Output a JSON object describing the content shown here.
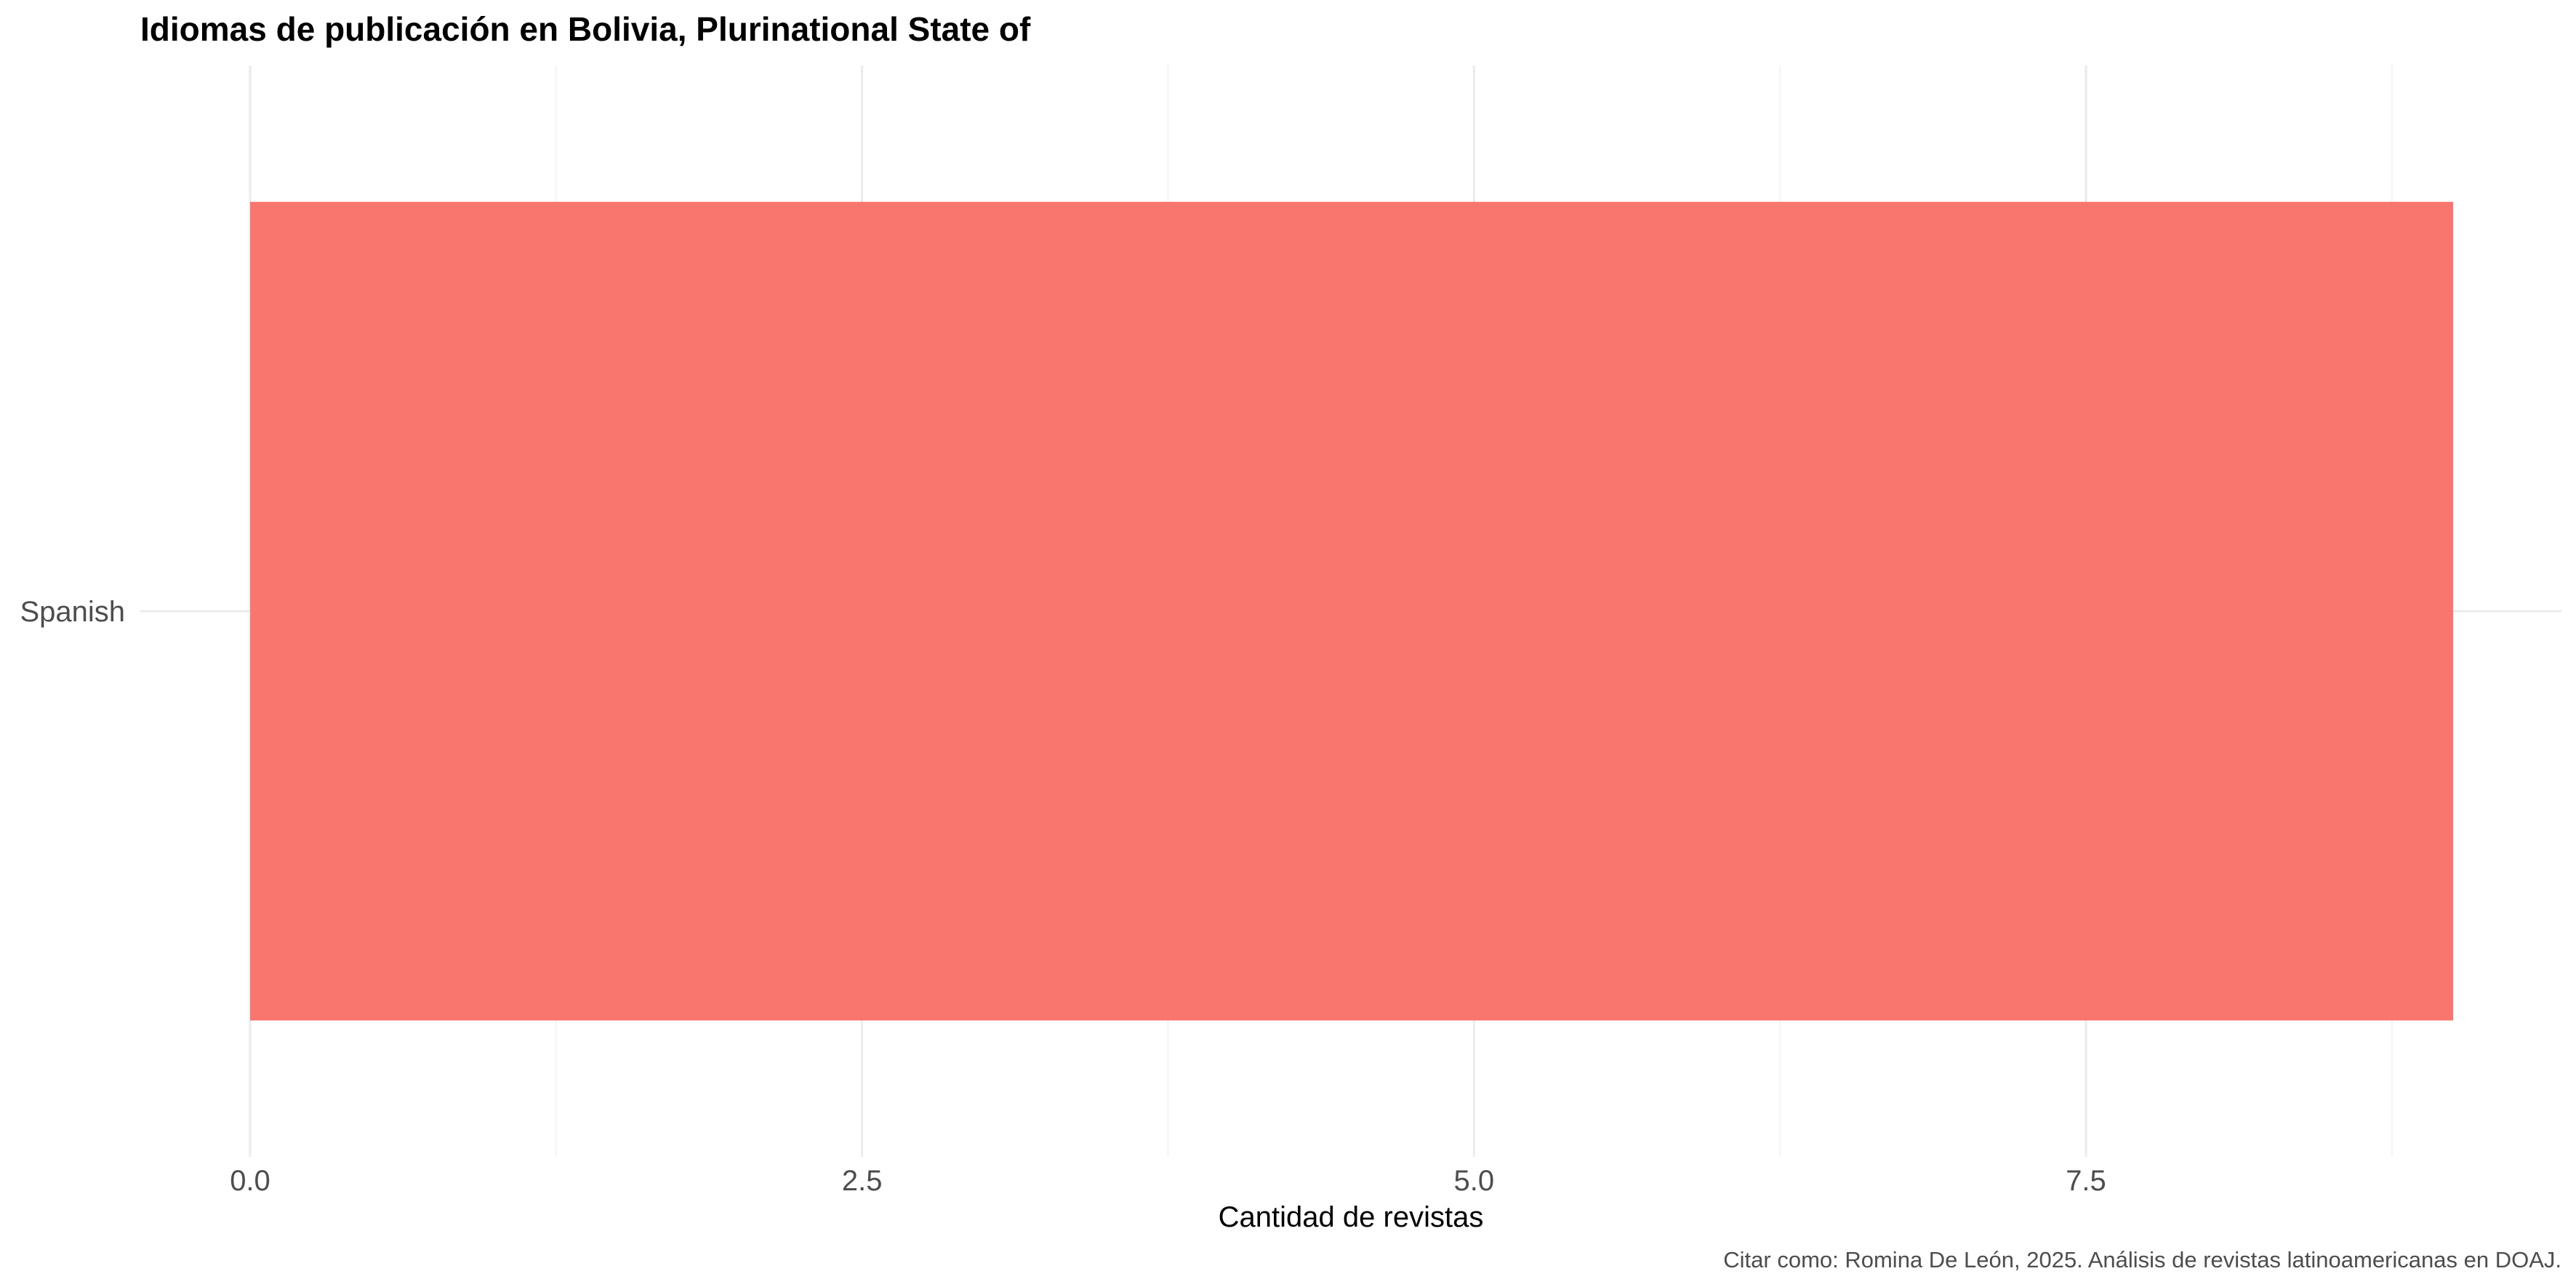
{
  "chart_data": {
    "type": "bar",
    "orientation": "horizontal",
    "title": "Idiomas de publicación en Bolivia, Plurinational State of",
    "xlabel": "Cantidad de revistas",
    "ylabel": "",
    "categories": [
      "Spanish"
    ],
    "values": [
      9
    ],
    "xlim": [
      0,
      9
    ],
    "x_ticks": [
      0,
      2.5,
      5,
      7.5
    ],
    "x_tick_labels": [
      "0.0",
      "2.5",
      "5.0",
      "7.5"
    ],
    "grid": true,
    "legend": "none",
    "caption": "Citar como: Romina De León, 2025. Análisis de revistas latinoamericanas en DOAJ.",
    "colors": {
      "bar": "#F8766D",
      "grid_major": "#EBEBEB",
      "grid_minor": "#F3F3F3"
    }
  }
}
